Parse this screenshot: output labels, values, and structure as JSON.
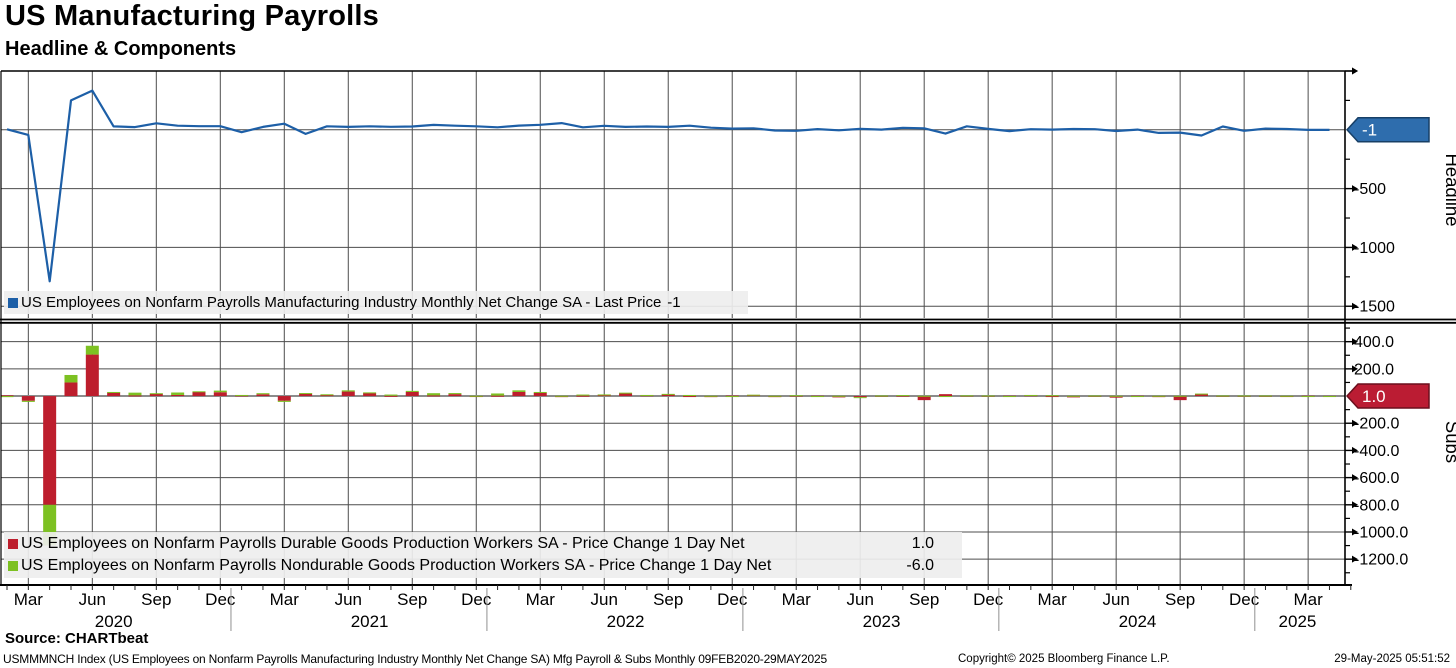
{
  "header": {
    "title": "US Manufacturing Payrolls",
    "subtitle": "Headline & Components"
  },
  "colors": {
    "line": "#1d5fa7",
    "durable": "#bd1e2d",
    "nondurable": "#7dc122",
    "tag_headline_bg": "#2e6dad",
    "tag_headline_border": "#173f66",
    "tag_subs_bg": "#bb1c33",
    "tag_subs_border": "#6b0f1d",
    "grid": "#4d4d4d",
    "zero_line": "#8c8c8c",
    "frame": "#000000"
  },
  "chart_data": [
    {
      "type": "line",
      "panel_label": "Headline",
      "series_name": "US Employees on Nonfarm Payrolls Manufacturing Industry Monthly Net Change SA",
      "last_price": -1,
      "axis_tag": "-1",
      "x_start": "2020-02",
      "x_end": "2025-04",
      "frequency": "monthly",
      "ylim": [
        -1600,
        500
      ],
      "grid": true,
      "y_ticks": [
        {
          "v": -500,
          "label": "-500"
        },
        {
          "v": -1000,
          "label": "-1000"
        },
        {
          "v": -1500,
          "label": "-1500"
        }
      ],
      "y_minor_ticks": [
        250,
        -250,
        -750,
        -1250
      ],
      "y_arrow_ticks": [
        500,
        -500,
        -1000,
        -1500
      ],
      "values": [
        4,
        -43,
        -1288,
        250,
        333,
        29,
        23,
        55,
        35,
        31,
        31,
        -20,
        25,
        52,
        -35,
        30,
        25,
        30,
        26,
        28,
        42,
        35,
        30,
        21,
        36,
        43,
        57,
        21,
        34,
        25,
        28,
        25,
        35,
        18,
        10,
        13,
        -6,
        -8,
        6,
        -4,
        8,
        2,
        17,
        13,
        -32,
        30,
        8,
        -11,
        5,
        2,
        7,
        5,
        -10,
        2,
        -26,
        -24,
        -48,
        28,
        -8,
        10,
        7,
        -1,
        -1
      ]
    },
    {
      "type": "bar",
      "stacked": true,
      "panel_label": "Subs",
      "axis_tag": "1.0",
      "x_start": "2020-02",
      "x_end": "2025-04",
      "frequency": "monthly",
      "ylim": [
        -1390,
        530
      ],
      "grid": true,
      "y_ticks": [
        {
          "v": 400,
          "label": "400.0"
        },
        {
          "v": 200,
          "label": "200.0"
        },
        {
          "v": -200,
          "label": "-200.0"
        },
        {
          "v": -400,
          "label": "-400.0"
        },
        {
          "v": -600,
          "label": "-600.0"
        },
        {
          "v": -800,
          "label": "-800.0"
        },
        {
          "v": -1000,
          "label": "-1000.0"
        },
        {
          "v": -1200,
          "label": "-1200.0"
        }
      ],
      "y_minor_ticks": [
        500,
        300,
        100,
        -100,
        -300,
        -500,
        -700,
        -900,
        -1100,
        -1300
      ],
      "y_arrow_ticks": [
        400,
        200,
        -200,
        -400,
        -600,
        -800,
        -1000,
        -1200
      ],
      "series": [
        {
          "name": "US Employees on Nonfarm Payrolls Durable Goods Production Workers SA",
          "metric": "Price Change 1 Day Net",
          "last_value": "1.0",
          "values": [
            5,
            -35,
            -800,
            100,
            305,
            25,
            5,
            18,
            8,
            32,
            28,
            5,
            13,
            -35,
            20,
            10,
            33,
            22,
            2,
            30,
            5,
            14,
            -5,
            3,
            30,
            24,
            -8,
            3,
            10,
            19,
            6,
            14,
            -6,
            -8,
            3,
            8,
            -8,
            3,
            2,
            -10,
            -8,
            2,
            3,
            -30,
            14,
            3,
            2,
            2,
            6,
            -3,
            -10,
            2,
            -12,
            2,
            -8,
            -30,
            16,
            2,
            2,
            2,
            -2,
            2,
            1
          ]
        },
        {
          "name": "US Employees on Nonfarm Payrolls Nondurable Goods Production Workers SA",
          "metric": "Price Change 1 Day Net",
          "last_value": "-6.0",
          "values": [
            -8,
            -8,
            -300,
            55,
            65,
            5,
            20,
            3,
            18,
            3,
            12,
            3,
            8,
            -8,
            2,
            3,
            9,
            5,
            9,
            8,
            16,
            8,
            2,
            16,
            12,
            6,
            2,
            8,
            2,
            6,
            2,
            2,
            8,
            2,
            -4,
            2,
            2,
            3,
            -2,
            2,
            -3,
            2,
            4,
            2,
            -2,
            2,
            2,
            -4,
            2,
            6,
            2,
            2,
            2,
            -4,
            2,
            2,
            2,
            2,
            2,
            2,
            2,
            -2,
            -6
          ]
        }
      ]
    }
  ],
  "x_axis": {
    "months_total": 64,
    "tick_labels": [
      {
        "m": 1,
        "label": "Mar"
      },
      {
        "m": 4,
        "label": "Jun"
      },
      {
        "m": 7,
        "label": "Sep"
      },
      {
        "m": 10,
        "label": "Dec"
      },
      {
        "m": 13,
        "label": "Mar"
      },
      {
        "m": 16,
        "label": "Jun"
      },
      {
        "m": 19,
        "label": "Sep"
      },
      {
        "m": 22,
        "label": "Dec"
      },
      {
        "m": 25,
        "label": "Mar"
      },
      {
        "m": 28,
        "label": "Jun"
      },
      {
        "m": 31,
        "label": "Sep"
      },
      {
        "m": 34,
        "label": "Dec"
      },
      {
        "m": 37,
        "label": "Mar"
      },
      {
        "m": 40,
        "label": "Jun"
      },
      {
        "m": 43,
        "label": "Sep"
      },
      {
        "m": 46,
        "label": "Dec"
      },
      {
        "m": 49,
        "label": "Mar"
      },
      {
        "m": 52,
        "label": "Jun"
      },
      {
        "m": 55,
        "label": "Sep"
      },
      {
        "m": 58,
        "label": "Dec"
      },
      {
        "m": 61,
        "label": "Mar"
      }
    ],
    "years": [
      {
        "m": 5,
        "label": "2020"
      },
      {
        "m": 17,
        "label": "2021"
      },
      {
        "m": 29,
        "label": "2022"
      },
      {
        "m": 41,
        "label": "2023"
      },
      {
        "m": 53,
        "label": "2024"
      },
      {
        "m": 60.5,
        "label": "2025"
      }
    ]
  },
  "legends": {
    "headline": {
      "label": "US Employees on Nonfarm Payrolls Manufacturing Industry Monthly Net Change SA - Last Price",
      "value": "-1"
    },
    "durable": {
      "label": "US Employees on Nonfarm Payrolls Durable Goods Production Workers SA - Price Change 1 Day Net",
      "value": "1.0"
    },
    "nondurable": {
      "label": "US Employees on Nonfarm Payrolls Nondurable Goods Production Workers SA - Price Change 1 Day Net",
      "value": "-6.0"
    }
  },
  "footer": {
    "source": "Source: CHARTbeat",
    "description": "USMMMNCH Index (US Employees on Nonfarm Payrolls Manufacturing Industry Monthly Net Change SA) Mfg Payroll & Subs  Monthly 09FEB2020-29MAY2025",
    "copyright": "Copyright© 2025 Bloomberg Finance L.P.",
    "timestamp": "29-May-2025 05:51:52"
  }
}
